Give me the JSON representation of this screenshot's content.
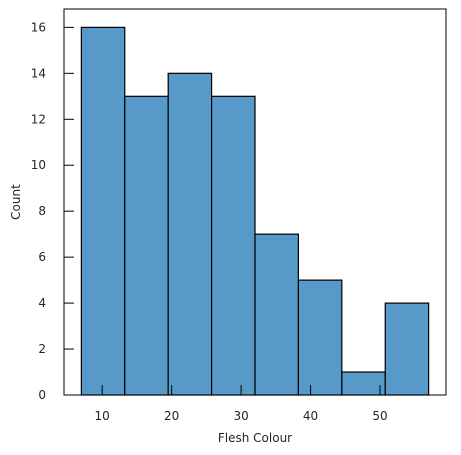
{
  "chart_data": {
    "type": "bar",
    "subtype": "histogram",
    "title": "",
    "xlabel": "Flesh Colour",
    "ylabel": "Count",
    "bin_edges": [
      7.0,
      13.25,
      19.5,
      25.75,
      32.0,
      38.25,
      44.5,
      50.75,
      57.0
    ],
    "counts": [
      16,
      13,
      14,
      13,
      7,
      5,
      1,
      4
    ],
    "xlim": [
      4.5,
      59.5
    ],
    "ylim": [
      0,
      16.8
    ],
    "xticks": [
      10,
      20,
      30,
      40,
      50
    ],
    "yticks": [
      0,
      2,
      4,
      6,
      8,
      10,
      12,
      14,
      16
    ],
    "grid": false,
    "bar_color": "#5799C8",
    "edge_color": "#000000"
  }
}
